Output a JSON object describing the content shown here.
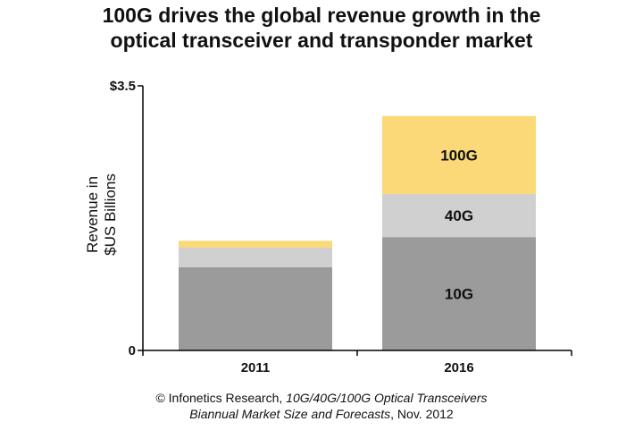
{
  "title_lines": [
    "100G drives the global revenue growth in the",
    "optical transceiver and transponder market"
  ],
  "source": {
    "prefix": "© Infonetics Research, ",
    "italic_1": "10G/40G/100G Optical Transceivers",
    "italic_2": "Biannual Market Size and Forecasts",
    "suffix": ", Nov. 2012"
  },
  "colors": {
    "10G": "#9b9b9b",
    "40G": "#d0d0d0",
    "100G": "#fbd978",
    "axis": "#000000"
  },
  "chart_data": {
    "type": "bar",
    "stacked": true,
    "title": "100G drives the global revenue growth in the optical transceiver and transponder market",
    "xlabel": "",
    "ylabel": "Revenue in $US Billions",
    "ylim": [
      0,
      3.5
    ],
    "y_tick_labels": [
      "0",
      "$3.5"
    ],
    "categories": [
      "2011",
      "2016"
    ],
    "series": [
      {
        "name": "10G",
        "values": [
          1.1,
          1.5
        ],
        "label": "10G"
      },
      {
        "name": "40G",
        "values": [
          0.26,
          0.57
        ],
        "label": "40G"
      },
      {
        "name": "100G",
        "values": [
          0.09,
          1.03
        ],
        "label": "100G"
      }
    ],
    "segment_labels_shown_for": [
      "2016"
    ]
  }
}
